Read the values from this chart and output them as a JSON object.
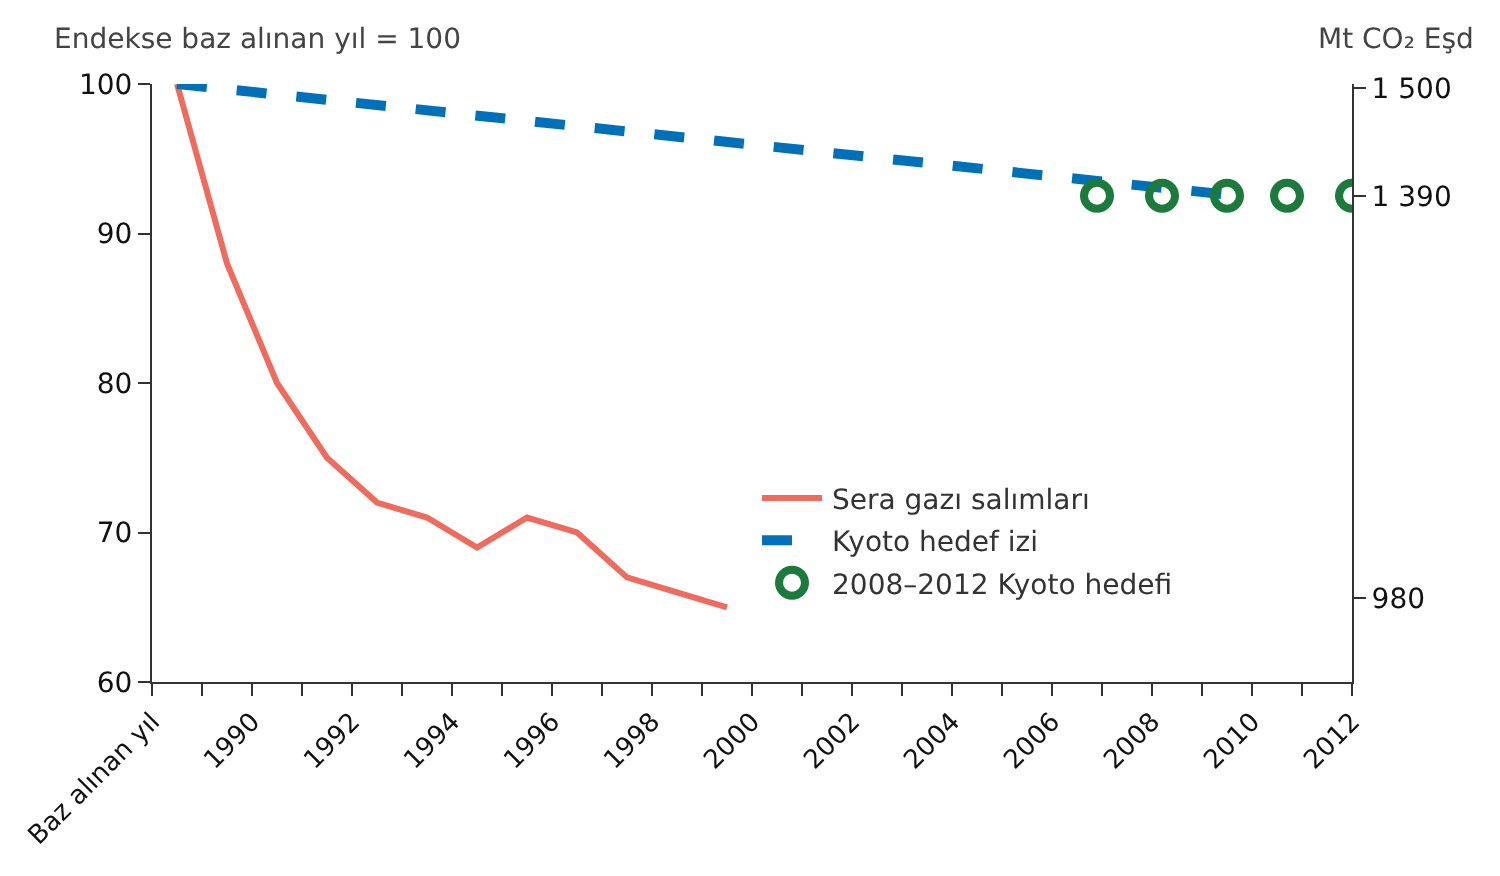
{
  "chart_data": {
    "type": "line",
    "ylabel": "Endekse baz alınan yıl = 100",
    "y2label": "Mt CO₂ Eşd",
    "xlim": [
      1988,
      2012
    ],
    "xticks": [
      {
        "value": 1988,
        "label": "Baz alınan yıl"
      },
      {
        "value": 1989,
        "label": null
      },
      1990,
      {
        "value": 1991,
        "label": null
      },
      1992,
      {
        "value": 1993,
        "label": null
      },
      1994,
      {
        "value": 1995,
        "label": null
      },
      1996,
      {
        "value": 1997,
        "label": null
      },
      1998,
      {
        "value": 1999,
        "label": null
      },
      2000,
      {
        "value": 2001,
        "label": null
      },
      2002,
      {
        "value": 2003,
        "label": null
      },
      2004,
      {
        "value": 2005,
        "label": null
      },
      2006,
      {
        "value": 2007,
        "label": null
      },
      2008,
      {
        "value": 2009,
        "label": null
      },
      2010,
      {
        "value": 2011,
        "label": null
      },
      2012
    ],
    "ylim": [
      60,
      100
    ],
    "yticks": [
      60,
      70,
      80,
      90,
      100
    ],
    "y2lim": [
      894,
      1504
    ],
    "y2ticks": [
      {
        "value": 980,
        "label": "980"
      },
      {
        "value": 1390,
        "label": "1 390"
      },
      {
        "value": 1500,
        "label": "1 500"
      }
    ],
    "legend": "bottom right",
    "series": [
      {
        "name": "Sera gazı salımları",
        "color": "#ee6b5d",
        "line_style": "solid",
        "marker": "none",
        "x": [
          1988.5,
          1989.5,
          1990.5,
          1991.5,
          1992.5,
          1993.5,
          1994.5,
          1995.5,
          1996.5,
          1997.5,
          1998.5,
          1999.5
        ],
        "values": [
          100,
          88,
          80,
          75,
          72,
          71,
          69,
          71,
          70,
          67,
          66,
          65
        ]
      },
      {
        "name": "Kyoto hedef izi",
        "color": "#0070b8",
        "line_style": "dashed",
        "marker": "none",
        "x": [
          1988.5,
          2009.5
        ],
        "values": [
          100,
          92.6
        ]
      },
      {
        "name": "2008–2012 Kyoto hedefi",
        "type": "scatter",
        "color": "#1b7a3c",
        "marker": "circle",
        "axis": "y2",
        "x": [
          2006.9,
          2008.2,
          2009.5,
          2010.7,
          2012.0
        ],
        "values": [
          1390,
          1390,
          1390,
          1390,
          1390
        ]
      }
    ]
  }
}
